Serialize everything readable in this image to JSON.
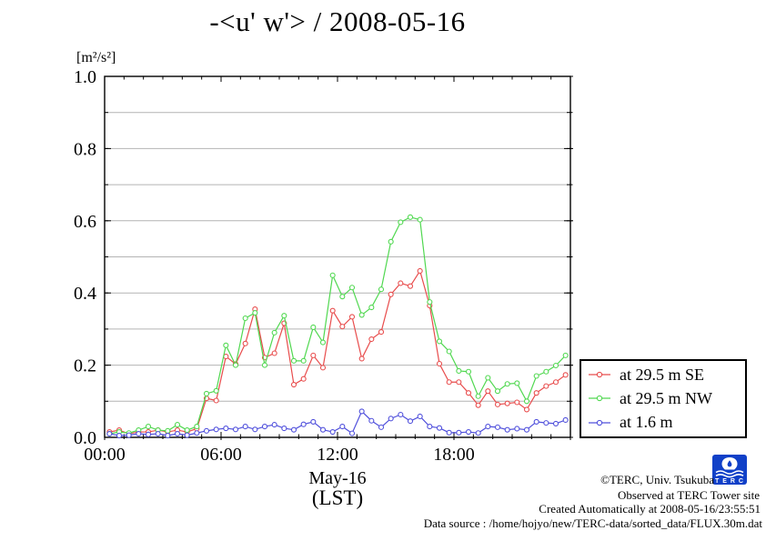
{
  "title": "-<u' w'> / 2008-05-16",
  "y_unit_label": "[m²/s²]",
  "xlabel_line1": "May-16",
  "xlabel_line2": "(LST)",
  "footer": {
    "credit": "©TERC, Univ. Tsukuba",
    "observed": "Observed at TERC Tower site",
    "created": "Created Automatically at 2008-05-16/23:55:51",
    "source": "Data source : /home/hojyo/new/TERC-data/sorted_data/FLUX.30m.dat"
  },
  "logo": {
    "text": "T E R C",
    "bg_color": "#1040c8"
  },
  "chart_data": {
    "type": "line",
    "title": "-<u' w'> / 2008-05-16",
    "xlabel": "May-16 (LST)",
    "ylabel": "[m²/s²]",
    "xlim_hours": [
      0,
      24
    ],
    "ylim": [
      0,
      1.0
    ],
    "grid": "horizontal only",
    "grid_step": 0.1,
    "grid_color": "#b4b4b4",
    "frame_color": "#000000",
    "legend_position": "outside right bottom",
    "x_major_hours": [
      0,
      6,
      12,
      18,
      24
    ],
    "x_minor_step_hours": 1,
    "x_labels": [
      {
        "t": 0,
        "label": "00:00"
      },
      {
        "t": 6,
        "label": "06:00"
      },
      {
        "t": 12,
        "label": "12:00"
      },
      {
        "t": 18,
        "label": "18:00"
      }
    ],
    "y_labels": [
      {
        "v": 0.0,
        "label": "0.0"
      },
      {
        "v": 0.2,
        "label": "0.2"
      },
      {
        "v": 0.4,
        "label": "0.4"
      },
      {
        "v": 0.6,
        "label": "0.6"
      },
      {
        "v": 0.8,
        "label": "0.8"
      },
      {
        "v": 1.0,
        "label": "1.0"
      }
    ],
    "y_minor_step": 0.1,
    "sampling": {
      "start_hour": 0.25,
      "step_hours": 0.5,
      "points": 48
    },
    "series": [
      {
        "name": "at 29.5 m SE",
        "color": "#e84c4c",
        "marker": "open-circle",
        "values": [
          0.015,
          0.02,
          0.01,
          0.015,
          0.015,
          0.02,
          0.015,
          0.02,
          0.015,
          0.024,
          0.108,
          0.102,
          0.224,
          0.203,
          0.26,
          0.355,
          0.221,
          0.233,
          0.316,
          0.146,
          0.162,
          0.227,
          0.193,
          0.351,
          0.307,
          0.334,
          0.218,
          0.272,
          0.292,
          0.396,
          0.427,
          0.419,
          0.461,
          0.365,
          0.204,
          0.153,
          0.153,
          0.123,
          0.089,
          0.128,
          0.091,
          0.094,
          0.097,
          0.077,
          0.123,
          0.142,
          0.153,
          0.173
        ]
      },
      {
        "name": "at 29.5 m NW",
        "color": "#50d850",
        "marker": "open-circle",
        "values": [
          0.01,
          0.015,
          0.012,
          0.02,
          0.03,
          0.02,
          0.018,
          0.035,
          0.02,
          0.03,
          0.121,
          0.129,
          0.255,
          0.2,
          0.33,
          0.345,
          0.2,
          0.29,
          0.337,
          0.212,
          0.212,
          0.305,
          0.263,
          0.449,
          0.39,
          0.415,
          0.339,
          0.36,
          0.41,
          0.542,
          0.596,
          0.61,
          0.603,
          0.375,
          0.266,
          0.238,
          0.184,
          0.182,
          0.114,
          0.165,
          0.128,
          0.148,
          0.15,
          0.1,
          0.17,
          0.182,
          0.199,
          0.227
        ]
      },
      {
        "name": "at 1.6 m",
        "color": "#5050dc",
        "marker": "open-circle",
        "values": [
          0.01,
          0.005,
          0.006,
          0.01,
          0.008,
          0.01,
          0.005,
          0.01,
          0.006,
          0.012,
          0.018,
          0.022,
          0.025,
          0.022,
          0.03,
          0.022,
          0.03,
          0.035,
          0.025,
          0.021,
          0.036,
          0.043,
          0.021,
          0.015,
          0.03,
          0.011,
          0.072,
          0.046,
          0.028,
          0.052,
          0.063,
          0.045,
          0.058,
          0.03,
          0.026,
          0.013,
          0.013,
          0.015,
          0.012,
          0.03,
          0.028,
          0.021,
          0.024,
          0.021,
          0.043,
          0.04,
          0.038,
          0.048
        ]
      }
    ]
  }
}
